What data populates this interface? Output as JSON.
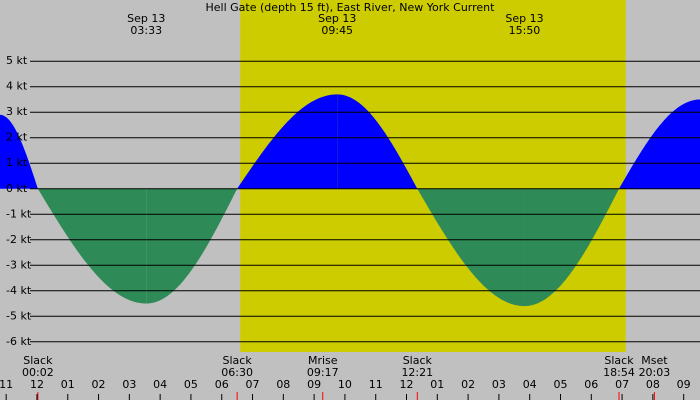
{
  "chart_data": {
    "type": "area",
    "title": "Hell Gate (depth 15 ft), East River, New York Current",
    "xlim": [
      -1.2,
      21.53
    ],
    "ylim": [
      -6.4,
      7.4
    ],
    "xticks": [
      {
        "value": -1,
        "label": "11"
      },
      {
        "value": 0,
        "label": "12"
      },
      {
        "value": 1,
        "label": "01"
      },
      {
        "value": 2,
        "label": "02"
      },
      {
        "value": 3,
        "label": "03"
      },
      {
        "value": 4,
        "label": "04"
      },
      {
        "value": 5,
        "label": "05"
      },
      {
        "value": 6,
        "label": "06"
      },
      {
        "value": 7,
        "label": "07"
      },
      {
        "value": 8,
        "label": "08"
      },
      {
        "value": 9,
        "label": "09"
      },
      {
        "value": 10,
        "label": "10"
      },
      {
        "value": 11,
        "label": "11"
      },
      {
        "value": 12,
        "label": "12"
      },
      {
        "value": 13,
        "label": "01"
      },
      {
        "value": 14,
        "label": "02"
      },
      {
        "value": 15,
        "label": "03"
      },
      {
        "value": 16,
        "label": "04"
      },
      {
        "value": 17,
        "label": "05"
      },
      {
        "value": 18,
        "label": "06"
      },
      {
        "value": 19,
        "label": "07"
      },
      {
        "value": 20,
        "label": "08"
      },
      {
        "value": 21,
        "label": "09"
      }
    ],
    "yticks": [
      {
        "value": 5,
        "label": "5 kt"
      },
      {
        "value": 4,
        "label": "4 kt"
      },
      {
        "value": 3,
        "label": "3 kt"
      },
      {
        "value": 2,
        "label": "2 kt"
      },
      {
        "value": 1,
        "label": "1 kt"
      },
      {
        "value": 0,
        "label": "0 kt"
      },
      {
        "value": -1,
        "label": "-1 kt"
      },
      {
        "value": -2,
        "label": "-2 kt"
      },
      {
        "value": -3,
        "label": "-3 kt"
      },
      {
        "value": -4,
        "label": "-4 kt"
      },
      {
        "value": -5,
        "label": "-5 kt"
      },
      {
        "value": -6,
        "label": "-6 kt"
      }
    ],
    "grid": true,
    "daylight": [
      6.6,
      19.12
    ],
    "background_color": "#c0c0c0",
    "daylight_color": "#cccc00",
    "flood_color": "#0000ff",
    "ebb_color": "#2e8b57",
    "series": [
      {
        "x": [
          -1.2,
          0.03,
          3.55,
          6.5,
          9.75,
          12.35,
          15.83,
          18.9,
          21.53
        ],
        "values": [
          2.9,
          0,
          -4.5,
          0,
          3.7,
          0,
          -4.6,
          0,
          3.5
        ]
      }
    ],
    "peaks": [
      {
        "date": "Sep 13",
        "time": "03:33",
        "x": 3.55
      },
      {
        "date": "Sep 13",
        "time": "09:45",
        "x": 9.75
      },
      {
        "date": "Sep 13",
        "time": "15:50",
        "x": 15.83
      }
    ],
    "events": [
      {
        "label": "Slack",
        "time": "00:02",
        "x": 0.03
      },
      {
        "label": "Slack",
        "time": "06:30",
        "x": 6.5
      },
      {
        "label": "Mrise",
        "time": "09:17",
        "x": 9.28
      },
      {
        "label": "Slack",
        "time": "12:21",
        "x": 12.35
      },
      {
        "label": "Slack",
        "time": "18:54",
        "x": 18.9
      },
      {
        "label": "Mset",
        "time": "20:03",
        "x": 20.05
      }
    ]
  }
}
